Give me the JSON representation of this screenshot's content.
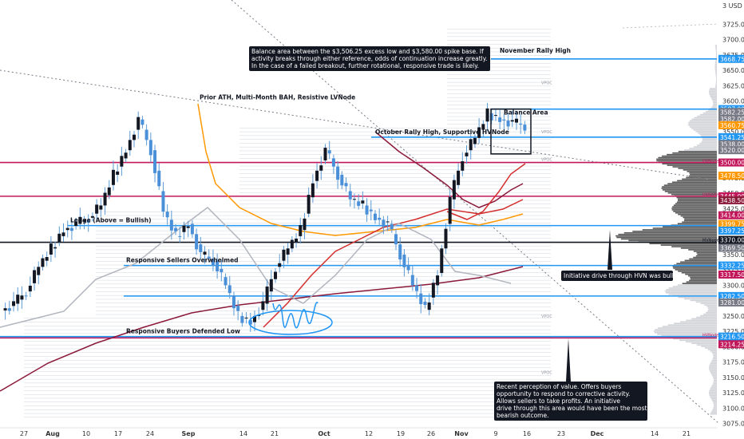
{
  "chart_data": {
    "type": "candlestick",
    "price_axis": {
      "unit_label": "USD",
      "ticks": [
        3075,
        3100,
        3125,
        3150,
        3175,
        3200,
        3225,
        3250,
        3275,
        3300,
        3325,
        3350,
        3375,
        3400,
        3425,
        3450,
        3475,
        3500,
        3525,
        3550,
        3575,
        3600,
        3625,
        3650,
        3675,
        3700,
        3725
      ],
      "range": [
        3064,
        3735
      ]
    },
    "time_axis": {
      "labels": [
        "27",
        "Aug",
        "10",
        "17",
        "24",
        "Sep",
        "14",
        "21",
        "Oct",
        "12",
        "19",
        "26",
        "Nov",
        "9",
        "16",
        "23",
        "Dec",
        "14",
        "21"
      ]
    },
    "price_labels": [
      {
        "value": "3668.75",
        "price": 3668.75,
        "color": "#2196f3"
      },
      {
        "value": "3587.00",
        "price": 3587.0,
        "color": "#2196f3"
      },
      {
        "value": "3582.25",
        "price": 3582.25,
        "color": "#787b86"
      },
      {
        "value": "3582.00",
        "price": 3571.0,
        "color": "#787b86"
      },
      {
        "value": "3560.75",
        "price": 3560.75,
        "color": "#ff9800"
      },
      {
        "value": "3541.25",
        "price": 3541.25,
        "color": "#2196f3"
      },
      {
        "value": "3538.00",
        "price": 3530.0,
        "color": "#787b86"
      },
      {
        "value": "3520.00",
        "price": 3520.0,
        "color": "#787b86"
      },
      {
        "value": "3500.00",
        "price": 3500.0,
        "color": "#c2185b"
      },
      {
        "value": "3478.50",
        "price": 3478.5,
        "color": "#ff9800"
      },
      {
        "value": "3445.00",
        "price": 3445.0,
        "color": "#c2185b"
      },
      {
        "value": "3438.50",
        "price": 3438.5,
        "color": "#8b1a3a"
      },
      {
        "value": "3414.00",
        "price": 3414.0,
        "color": "#c2185b"
      },
      {
        "value": "3399.75",
        "price": 3399.75,
        "color": "#ff9800"
      },
      {
        "value": "3397.25",
        "price": 3389.0,
        "color": "#2196f3"
      },
      {
        "value": "3370.00",
        "price": 3374.0,
        "color": "#131722"
      },
      {
        "value": "3369.50",
        "price": 3361.0,
        "color": "#787b86"
      },
      {
        "value": "3332.25",
        "price": 3332.25,
        "color": "#2196f3"
      },
      {
        "value": "3317.50",
        "price": 3317.5,
        "color": "#c2185b"
      },
      {
        "value": "3282.50",
        "price": 3282.5,
        "color": "#2196f3"
      },
      {
        "value": "3281.00",
        "price": 3272.0,
        "color": "#787b86"
      },
      {
        "value": "3216.50",
        "price": 3216.5,
        "color": "#2196f3"
      },
      {
        "value": "3214.25",
        "price": 3204.0,
        "color": "#c2185b"
      }
    ],
    "horizontal_levels": [
      {
        "name": "November Rally High",
        "price": 3668.75,
        "color": "#2196f3"
      },
      {
        "name": "Balance area top",
        "price": 3587.0,
        "color": "#2196f3"
      },
      {
        "name": "October Rally High, Supportive HVNode",
        "price": 3541.25,
        "color": "#2196f3"
      },
      {
        "name": "HVN 3500",
        "price": 3500.0,
        "color": "#c2185b"
      },
      {
        "name": "HVN 3445",
        "price": 3445.0,
        "color": "#c2185b"
      },
      {
        "name": "Ledge (Above = Bullish)",
        "price": 3397.25,
        "color": "#2196f3"
      },
      {
        "name": "HVN 3370",
        "price": 3370.0,
        "color": "#131722"
      },
      {
        "name": "Responsive Sellers Overwhelmed",
        "price": 3332.25,
        "color": "#2196f3"
      },
      {
        "name": "3282.50 level",
        "price": 3282.5,
        "color": "#2196f3"
      },
      {
        "name": "Responsive Buyers Defended Low",
        "price": 3216.5,
        "color": "#2196f3"
      },
      {
        "name": "HVN 3214",
        "price": 3214.25,
        "color": "#c2185b"
      }
    ],
    "annotations": [
      {
        "text": "November Rally High"
      },
      {
        "text": "Prior ATH, Multi-Month BAH, Resistive LVNode"
      },
      {
        "text": "October Rally High, Supportive HVNode"
      },
      {
        "text": "Ledge (Above = Bullish)"
      },
      {
        "text": "Responsive Sellers Overwhelmed"
      },
      {
        "text": "Responsive Buyers Defended Low"
      },
      {
        "text": "Balance Area"
      }
    ],
    "notes": [
      {
        "text": "Balance area between the $3,506.25 excess low and $3,580.00 spike base. If activity breaks through either reference, odds of continuation increase greatly. In the case of a failed breakout, further rotational, responsive trade is likely."
      },
      {
        "text": "Initiative drive through HVN was bullish."
      },
      {
        "text": "Recent perception of value. Offers buyers opportunity to respond to corrective activity. Allows sellers to take profits. An initiative drive through this area would have been the most bearish outcome."
      }
    ],
    "small_labels": [
      {
        "text": "VPOC",
        "price": 3630
      },
      {
        "text": "VPOC",
        "price": 3550
      },
      {
        "text": "VPOC",
        "price": 3505
      },
      {
        "text": "VPOC",
        "price": 3250
      },
      {
        "text": "VPOC",
        "price": 3158
      },
      {
        "text": "HVNode",
        "price": 3503
      },
      {
        "text": "HVNode",
        "price": 3448
      },
      {
        "text": "HVNode",
        "price": 3219
      },
      {
        "text": "MVNode",
        "price": 3374
      }
    ],
    "close_path": [
      [
        3259,
        3270,
        3290,
        3330,
        3360,
        3390,
        3400,
        3410,
        3430,
        3480,
        3520,
        3570,
        3520,
        3420,
        3380,
        3400,
        3350,
        3340,
        3300,
        3250,
        3240,
        3270,
        3330,
        3360,
        3390,
        3470,
        3520,
        3480,
        3440,
        3430,
        3410,
        3400,
        3350,
        3300,
        3260,
        3320,
        3440,
        3510,
        3540,
        3580,
        3570,
        3565,
        3560
      ]
    ]
  }
}
